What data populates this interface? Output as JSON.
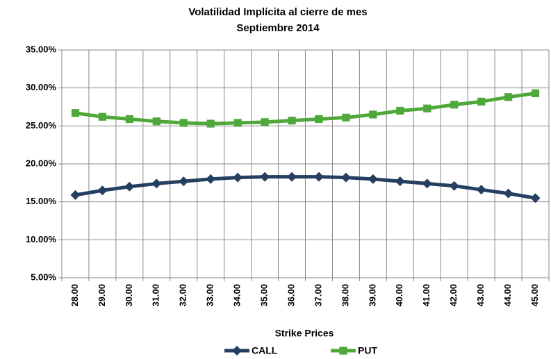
{
  "chart_data": {
    "type": "line",
    "title": "Volatilidad Implícita al cierre de mes",
    "subtitle": "Septiembre  2014",
    "x_label": "Strike Prices",
    "categories": [
      "28.00",
      "29.00",
      "30.00",
      "31.00",
      "32.00",
      "33.00",
      "34.00",
      "35.00",
      "36.00",
      "37.00",
      "38.00",
      "39.00",
      "40.00",
      "41.00",
      "42.00",
      "43.00",
      "44.00",
      "45.00"
    ],
    "series": [
      {
        "name": "CALL",
        "color": "#243f60",
        "marker": "diamond",
        "values": [
          15.9,
          16.5,
          17.0,
          17.4,
          17.7,
          18.0,
          18.2,
          18.3,
          18.3,
          18.3,
          18.2,
          18.0,
          17.7,
          17.4,
          17.1,
          16.6,
          16.1,
          15.5
        ]
      },
      {
        "name": "PUT",
        "color": "#4ea83a",
        "marker": "square",
        "values": [
          26.7,
          26.2,
          25.9,
          25.6,
          25.4,
          25.3,
          25.4,
          25.5,
          25.7,
          25.9,
          26.1,
          26.5,
          27.0,
          27.3,
          27.8,
          28.2,
          28.8,
          29.3
        ]
      }
    ],
    "ylim": [
      5,
      35
    ],
    "yticks": [
      {
        "value": 5,
        "label": "5.00%"
      },
      {
        "value": 10,
        "label": "10.00%"
      },
      {
        "value": 15,
        "label": "15.00%"
      },
      {
        "value": 20,
        "label": "20.00%"
      },
      {
        "value": 25,
        "label": "25.00%"
      },
      {
        "value": 30,
        "label": "30.00%"
      },
      {
        "value": 35,
        "label": "35.00%"
      }
    ],
    "grid": true,
    "legend": "bottom"
  }
}
